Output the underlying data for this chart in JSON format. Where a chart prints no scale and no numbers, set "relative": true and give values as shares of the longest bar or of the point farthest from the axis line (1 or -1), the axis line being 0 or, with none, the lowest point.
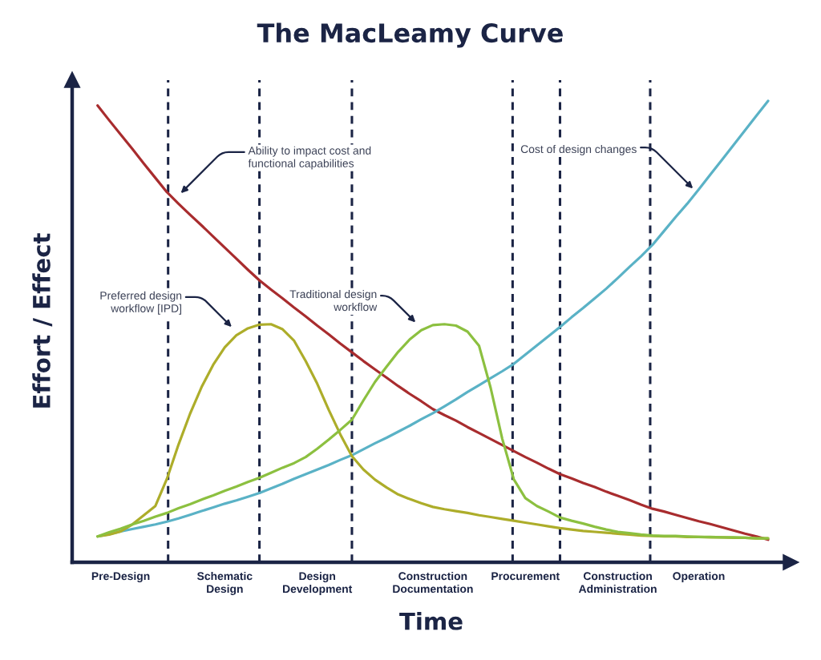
{
  "chart_data": {
    "type": "line",
    "title": "The MacLeamy Curve",
    "xlabel": "Time",
    "ylabel": "Effort / Effect",
    "relative": true,
    "tick_labels": "x",
    "grid": "x",
    "categories": [
      null,
      null,
      "Pre-Design",
      null,
      null,
      null,
      null,
      null,
      null,
      null,
      null,
      "Schematic\nDesign",
      null,
      null,
      null,
      null,
      null,
      null,
      null,
      "Design\nDevelopment",
      null,
      null,
      null,
      null,
      null,
      null,
      null,
      null,
      null,
      "Construction\nDocumentation",
      null,
      null,
      null,
      null,
      null,
      null,
      null,
      "Procurement",
      null,
      null,
      null,
      null,
      null,
      null,
      null,
      "Construction\nAdministration",
      null,
      null,
      null,
      null,
      null,
      null,
      "Operation",
      null,
      null,
      null,
      null,
      null,
      null
    ],
    "series": [
      {
        "color": "#a82c2e",
        "values": [
          0.99,
          0.958,
          0.927,
          0.896,
          0.864,
          0.833,
          0.802,
          0.777,
          0.753,
          0.73,
          0.706,
          0.682,
          0.658,
          0.634,
          0.611,
          0.591,
          0.572,
          0.552,
          0.533,
          0.513,
          0.494,
          0.474,
          0.455,
          0.436,
          0.418,
          0.4,
          0.382,
          0.365,
          0.349,
          0.332,
          0.319,
          0.307,
          0.293,
          0.28,
          0.267,
          0.254,
          0.241,
          0.228,
          0.216,
          0.203,
          0.191,
          0.182,
          0.172,
          0.163,
          0.153,
          0.144,
          0.135,
          0.125,
          0.116,
          0.11,
          0.103,
          0.096,
          0.089,
          0.083,
          0.076,
          0.069,
          0.062,
          0.056,
          0.049
        ]
      },
      {
        "color": "#5ab2c6",
        "values": [
          0.056,
          0.061,
          0.067,
          0.072,
          0.077,
          0.082,
          0.088,
          0.095,
          0.103,
          0.111,
          0.119,
          0.127,
          0.134,
          0.142,
          0.15,
          0.16,
          0.17,
          0.181,
          0.191,
          0.201,
          0.211,
          0.222,
          0.232,
          0.245,
          0.258,
          0.27,
          0.283,
          0.296,
          0.31,
          0.323,
          0.338,
          0.353,
          0.369,
          0.384,
          0.399,
          0.414,
          0.43,
          0.45,
          0.47,
          0.49,
          0.51,
          0.531,
          0.551,
          0.572,
          0.593,
          0.616,
          0.64,
          0.663,
          0.688,
          0.718,
          0.748,
          0.777,
          0.808,
          0.84,
          0.872,
          0.904,
          0.936,
          0.968,
          1.0
        ]
      },
      {
        "color": "#adad2a",
        "values": [
          0.056,
          0.06,
          0.067,
          0.082,
          0.102,
          0.122,
          0.181,
          0.255,
          0.322,
          0.38,
          0.428,
          0.466,
          0.492,
          0.507,
          0.515,
          0.516,
          0.505,
          0.48,
          0.436,
          0.387,
          0.33,
          0.277,
          0.23,
          0.201,
          0.179,
          0.162,
          0.147,
          0.137,
          0.128,
          0.12,
          0.115,
          0.111,
          0.107,
          0.102,
          0.098,
          0.094,
          0.09,
          0.086,
          0.082,
          0.078,
          0.074,
          0.071,
          0.068,
          0.066,
          0.064,
          0.062,
          0.06,
          0.058,
          0.057,
          0.056,
          0.056,
          0.055,
          0.055,
          0.054,
          0.054,
          0.053,
          0.053,
          0.052,
          0.052
        ]
      },
      {
        "color": "#8cc040",
        "values": [
          0.056,
          0.065,
          0.073,
          0.082,
          0.09,
          0.099,
          0.107,
          0.117,
          0.126,
          0.136,
          0.145,
          0.155,
          0.164,
          0.174,
          0.183,
          0.194,
          0.205,
          0.215,
          0.228,
          0.246,
          0.266,
          0.287,
          0.309,
          0.351,
          0.391,
          0.424,
          0.456,
          0.483,
          0.503,
          0.514,
          0.516,
          0.513,
          0.5,
          0.469,
          0.378,
          0.268,
          0.18,
          0.139,
          0.122,
          0.11,
          0.097,
          0.09,
          0.084,
          0.077,
          0.071,
          0.066,
          0.063,
          0.06,
          0.058,
          0.057,
          0.057,
          0.056,
          0.055,
          0.055,
          0.054,
          0.054,
          0.053,
          0.052,
          0.052
        ]
      }
    ],
    "annotations": [
      "Ability to impact cost and\nfunctional capabilities",
      "Preferred design\nworkflow [IPD]",
      "Traditional design\nworkflow",
      "Cost of design changes"
    ]
  }
}
